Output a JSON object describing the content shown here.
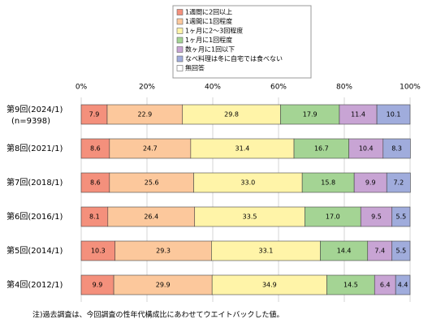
{
  "chart_data": {
    "type": "stacked-bar-horizontal",
    "categories": [
      "第9回(2024/1)",
      "第8回(2021/1)",
      "第7回(2018/1)",
      "第6回(2016/1)",
      "第5回(2014/1)",
      "第4回(2012/1)"
    ],
    "sample_label": "(n=9398)",
    "series": [
      {
        "name": "1週間に2回以上",
        "color": "#f4907c",
        "values": [
          7.9,
          8.6,
          8.6,
          8.1,
          10.3,
          9.9
        ],
        "value_labels": [
          "7.9",
          "8.6",
          "8.6",
          "8.1",
          "10.3",
          "9.9"
        ]
      },
      {
        "name": "1週間に1回程度",
        "color": "#fcc89c",
        "values": [
          22.9,
          24.7,
          25.6,
          26.4,
          29.3,
          29.9
        ],
        "value_labels": [
          "22.9",
          "24.7",
          "25.6",
          "26.4",
          "29.3",
          "29.9"
        ]
      },
      {
        "name": "1ヶ月に2～3回程度",
        "color": "#fff4a8",
        "values": [
          29.8,
          31.4,
          33.0,
          33.5,
          33.1,
          34.9
        ],
        "value_labels": [
          "29.8",
          "31.4",
          "33.0",
          "33.5",
          "33.1",
          "34.9"
        ]
      },
      {
        "name": "1ヶ月に1回程度",
        "color": "#a4d494",
        "values": [
          17.9,
          16.7,
          15.8,
          17.0,
          14.4,
          14.5
        ],
        "value_labels": [
          "17.9",
          "16.7",
          "15.8",
          "17.0",
          "14.4",
          "14.5"
        ]
      },
      {
        "name": "数ヶ月に1回以下",
        "color": "#c8a4d4",
        "values": [
          11.4,
          10.4,
          9.9,
          9.5,
          7.4,
          6.4
        ],
        "value_labels": [
          "11.4",
          "10.4",
          "9.9",
          "9.5",
          "7.4",
          "6.4"
        ]
      },
      {
        "name": "なべ料理は冬に自宅では食べない",
        "color": "#a0acdc",
        "values": [
          10.1,
          8.3,
          7.2,
          5.5,
          5.5,
          4.4
        ],
        "value_labels": [
          "10.1",
          "8.3",
          "7.2",
          "5.5",
          "5.5",
          "4.4"
        ]
      },
      {
        "name": "無回答",
        "color": "#ffffff",
        "values": [
          null,
          null,
          null,
          null,
          null,
          null
        ]
      }
    ],
    "xlim": [
      0,
      100
    ],
    "xticks": [
      {
        "value": 0,
        "label": "0%"
      },
      {
        "value": 20,
        "label": "20%"
      },
      {
        "value": 40,
        "label": "40%"
      },
      {
        "value": 60,
        "label": "60%"
      },
      {
        "value": 80,
        "label": "80%"
      },
      {
        "value": 100,
        "label": "100%"
      }
    ],
    "grid": true,
    "footnote": "注)過去調査は、今回調査の性年代構成比にあわせてウエイトバックした値。"
  }
}
